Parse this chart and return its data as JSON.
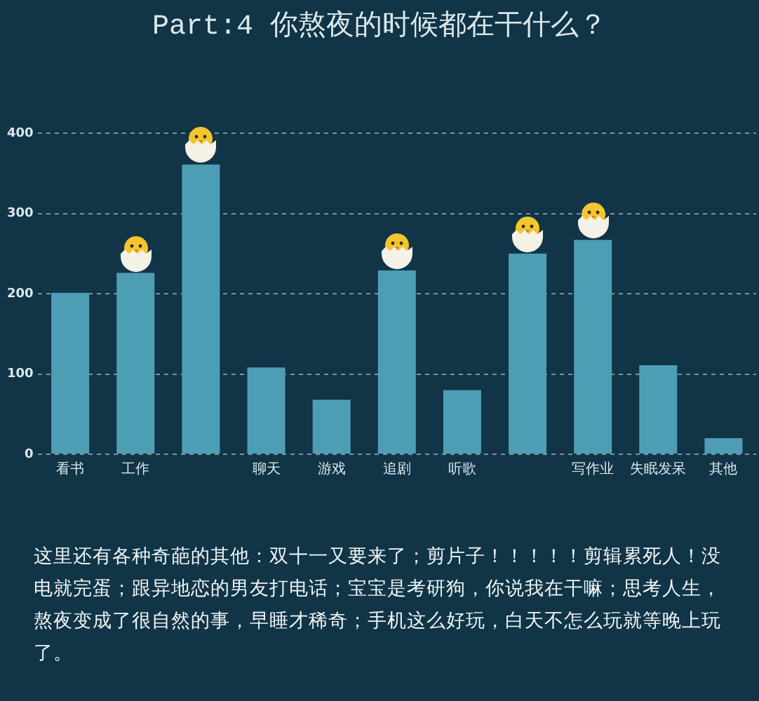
{
  "chart_data": {
    "type": "bar",
    "title": "Part:4 你熬夜的时候都在干什么？",
    "categories": [
      "看书",
      "工作",
      null,
      "聊天",
      "游戏",
      "追剧",
      "听歌",
      null,
      "写作业",
      "失眠发呆",
      "其他"
    ],
    "values": [
      201,
      226,
      361,
      108,
      68,
      229,
      80,
      250,
      267,
      111,
      20
    ],
    "color": "#4d9eb4",
    "ylim": [
      0,
      400
    ],
    "yticks": [
      0,
      100,
      200,
      300,
      400
    ],
    "grid": "y",
    "annotations": [
      "这里还有各种奇葩的其他：双十一又要来了；剪片子！！！！！剪辑累死人！没电就完蛋；跟异地恋的男友打电话；宝宝是考研狗，你说我在干嘛；思考人生，熬夜变成了很自然的事，早睡才稀奇；手机这么好玩，白天不怎么玩就等晚上玩了。"
    ]
  }
}
